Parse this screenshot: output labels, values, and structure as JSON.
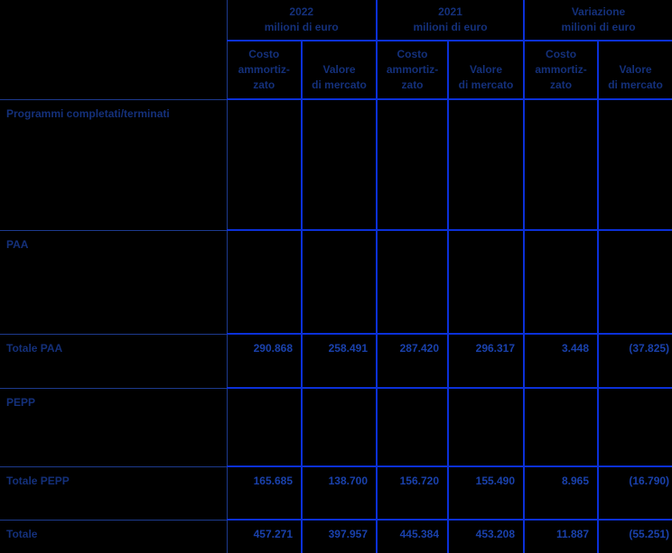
{
  "table": {
    "groups": [
      {
        "title": "2022",
        "subtitle": "milioni di euro"
      },
      {
        "title": "2021",
        "subtitle": "milioni di euro"
      },
      {
        "title": "Variazione",
        "subtitle": "milioni di euro"
      }
    ],
    "sub_headers": [
      "Costo\nammortiz-\nzato",
      "Valore\ndi mercato",
      "Costo\nammortiz-\nzato",
      "Valore\ndi mercato",
      "Costo\nammortiz-\nzato",
      "Valore\ndi mercato"
    ],
    "rows": [
      {
        "label": "Programmi completati/terminati",
        "values": [
          "",
          "",
          "",
          "",
          "",
          ""
        ]
      },
      {
        "label": "PAA",
        "values": [
          "",
          "",
          "",
          "",
          "",
          ""
        ]
      },
      {
        "label": "Totale PAA",
        "values": [
          "290.868",
          "258.491",
          "287.420",
          "296.317",
          "3.448",
          "(37.825)"
        ]
      },
      {
        "label": "PEPP",
        "values": [
          "",
          "",
          "",
          "",
          "",
          ""
        ]
      },
      {
        "label": "Totale PEPP",
        "values": [
          "165.685",
          "138.700",
          "156.720",
          "155.490",
          "8.965",
          "(16.790)"
        ]
      },
      {
        "label": "Totale",
        "values": [
          "457.271",
          "397.957",
          "445.384",
          "453.208",
          "11.887",
          "(55.251)"
        ]
      }
    ],
    "colors": {
      "background": "#000000",
      "grid_bright": "#0b30d8",
      "grid_dark": "#1d3a8e",
      "label_text": "#14307a",
      "number_text": "#1a41ab"
    }
  }
}
